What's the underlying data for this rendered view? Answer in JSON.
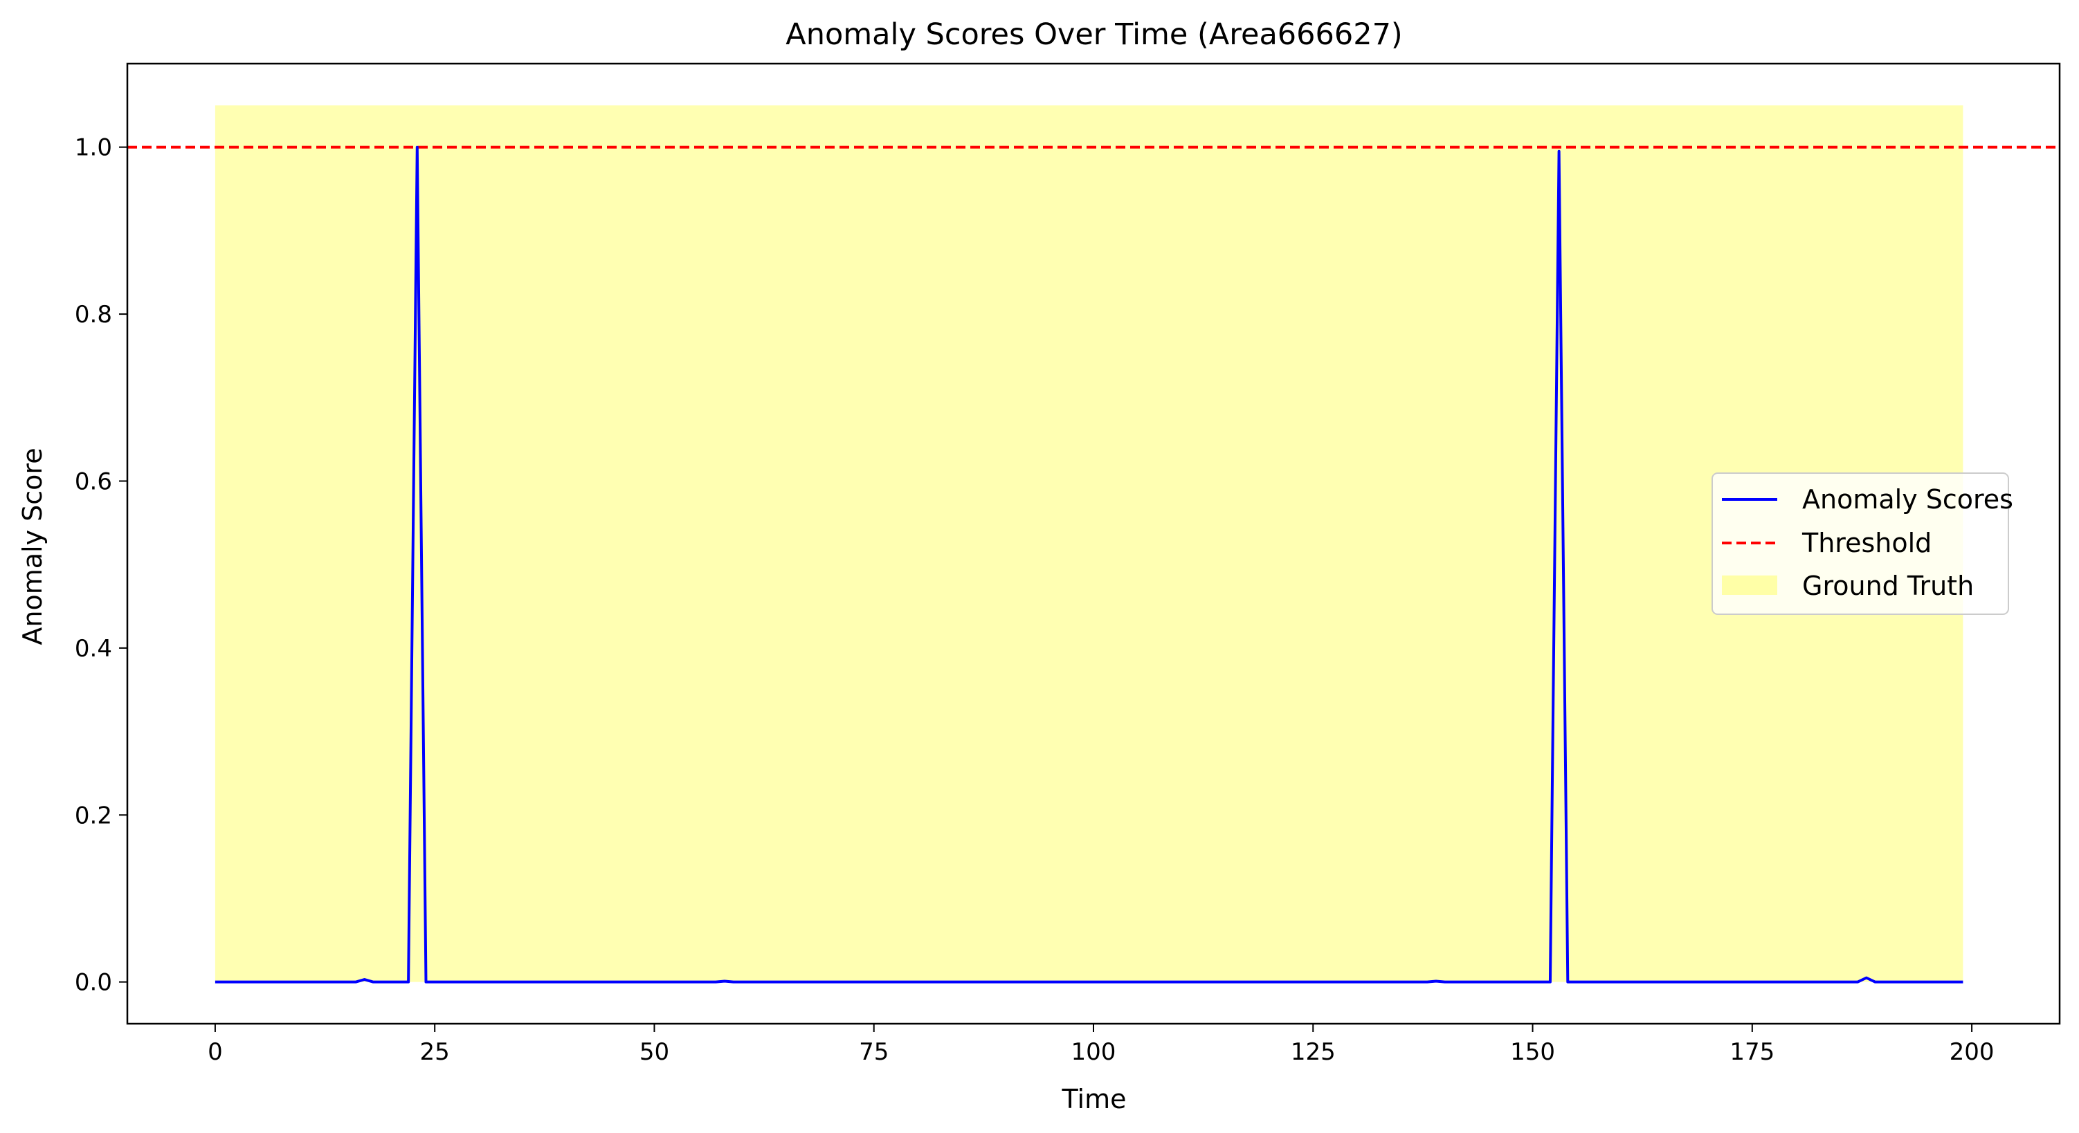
{
  "chart_data": {
    "type": "line",
    "title": "Anomaly Scores Over Time (Area666627)",
    "xlabel": "Time",
    "ylabel": "Anomaly Score",
    "xlim": [
      -10,
      210
    ],
    "ylim": [
      -0.05,
      1.1
    ],
    "xticks": [
      0,
      25,
      50,
      75,
      100,
      125,
      150,
      175,
      200
    ],
    "yticks": [
      0.0,
      0.2,
      0.4,
      0.6,
      0.8,
      1.0
    ],
    "xtick_labels": [
      "0",
      "25",
      "50",
      "75",
      "100",
      "125",
      "150",
      "175",
      "200"
    ],
    "ytick_labels": [
      "0.0",
      "0.2",
      "0.4",
      "0.6",
      "0.8",
      "1.0"
    ],
    "grid": false,
    "legend_position": "center-right",
    "series": [
      {
        "name": "Anomaly Scores",
        "color": "#0000ff",
        "style": "solid",
        "x": [
          0,
          16,
          17,
          18,
          22,
          23,
          24,
          57,
          58,
          59,
          138,
          139,
          140,
          152,
          153,
          154,
          187,
          188,
          189,
          199
        ],
        "y": [
          0,
          0,
          0.003,
          0,
          0,
          1.0,
          0,
          0,
          0.001,
          0,
          0,
          0.001,
          0,
          0,
          0.995,
          0,
          0,
          0.005,
          0,
          0
        ]
      }
    ],
    "threshold": {
      "name": "Threshold",
      "value": 1.0,
      "color": "#ff0000",
      "style": "dashed"
    },
    "ground_truth": {
      "name": "Ground Truth",
      "x_start": 0,
      "x_end": 199,
      "y_bottom": 0,
      "y_top": 1.05,
      "color": "#ffff00",
      "opacity": 0.3
    }
  }
}
